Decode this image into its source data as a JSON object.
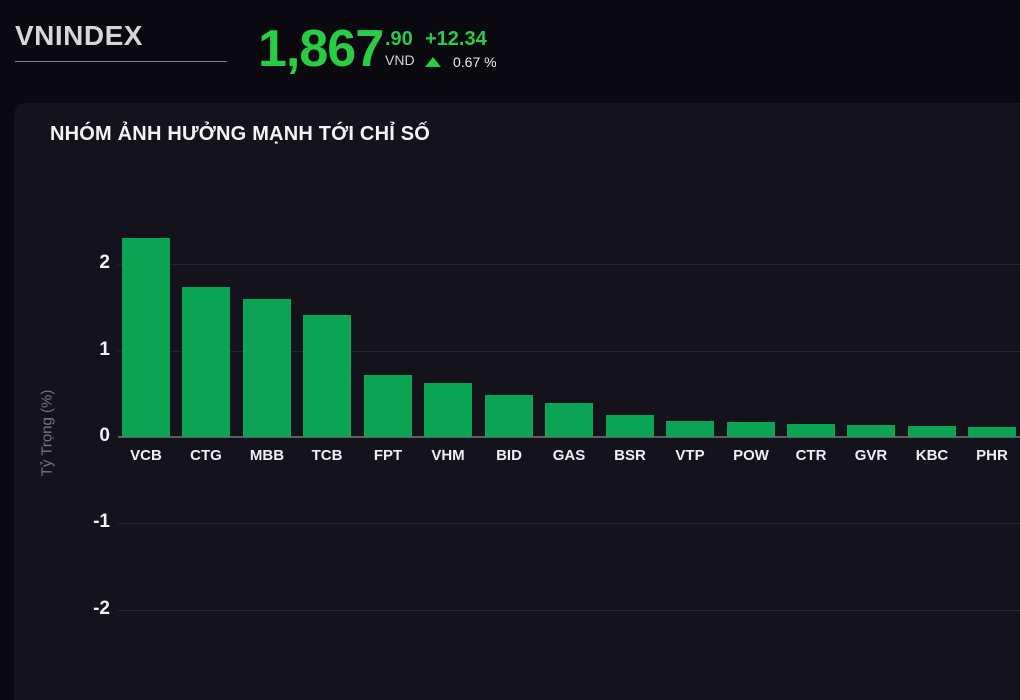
{
  "header": {
    "index_name": "VNINDEX",
    "price_int": "1,867",
    "price_frac": ".90",
    "currency": "VND",
    "change_value": "+12.34",
    "change_percent": "0.67 %",
    "direction": "up"
  },
  "panel": {
    "title": "NHÓM ẢNH HƯỞNG MẠNH TỚI CHỈ SỐ"
  },
  "colors": {
    "up_green": "#29cd43",
    "bar_green": "#0ba454",
    "panel_bg": "#14121b",
    "page_bg": "#0a090f"
  },
  "chart_data": {
    "type": "bar",
    "title": "NHÓM ẢNH HƯỞNG MẠNH TỚI CHỈ SỐ",
    "categories": [
      "VCB",
      "CTG",
      "MBB",
      "TCB",
      "FPT",
      "VHM",
      "BID",
      "GAS",
      "BSR",
      "VTP",
      "POW",
      "CTR",
      "GVR",
      "KBC",
      "PHR"
    ],
    "values": [
      2.31,
      1.74,
      1.6,
      1.41,
      0.72,
      0.63,
      0.49,
      0.39,
      0.25,
      0.19,
      0.17,
      0.15,
      0.14,
      0.13,
      0.12
    ],
    "xlabel": "",
    "ylabel": "Tỷ Trọng (%)",
    "yticks": [
      2,
      1,
      0,
      -1,
      -2
    ],
    "ylim": [
      -2.5,
      2.55
    ],
    "grid": true,
    "legend": false,
    "bar_color": "#0ba454"
  }
}
